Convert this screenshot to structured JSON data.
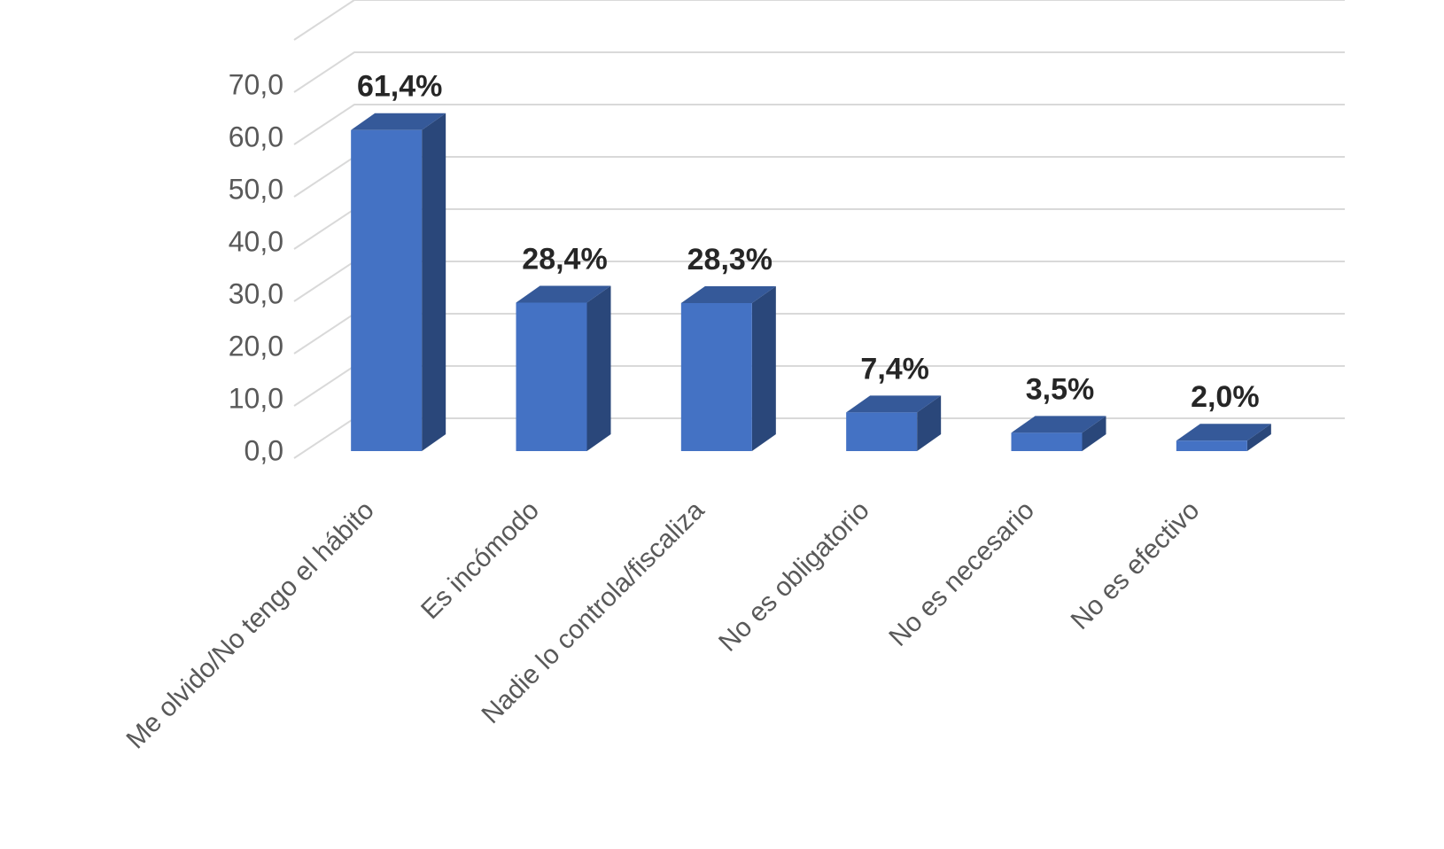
{
  "chart_data": {
    "type": "bar3d",
    "categories": [
      "Me olvido/No tengo el hábito",
      "Es incómodo",
      "Nadie lo controla/fiscaliza",
      "No es obligatorio",
      "No es necesario",
      "No es efectivo"
    ],
    "values": [
      61.4,
      28.4,
      28.3,
      7.4,
      3.5,
      2.0
    ],
    "value_labels": [
      "61,4%",
      "28,4%",
      "28,3%",
      "7,4%",
      "3,5%",
      "2,0%"
    ],
    "color": "#4472c4",
    "ylim": [
      0,
      80
    ],
    "yticks": [
      {
        "value": 0,
        "label": "0,0"
      },
      {
        "value": 10,
        "label": "10,0"
      },
      {
        "value": 20,
        "label": "20,0"
      },
      {
        "value": 30,
        "label": "30,0"
      },
      {
        "value": 40,
        "label": "40,0"
      },
      {
        "value": 50,
        "label": "50,0"
      },
      {
        "value": 60,
        "label": "60,0"
      },
      {
        "value": 70,
        "label": "70,0"
      }
    ],
    "grid": true
  }
}
